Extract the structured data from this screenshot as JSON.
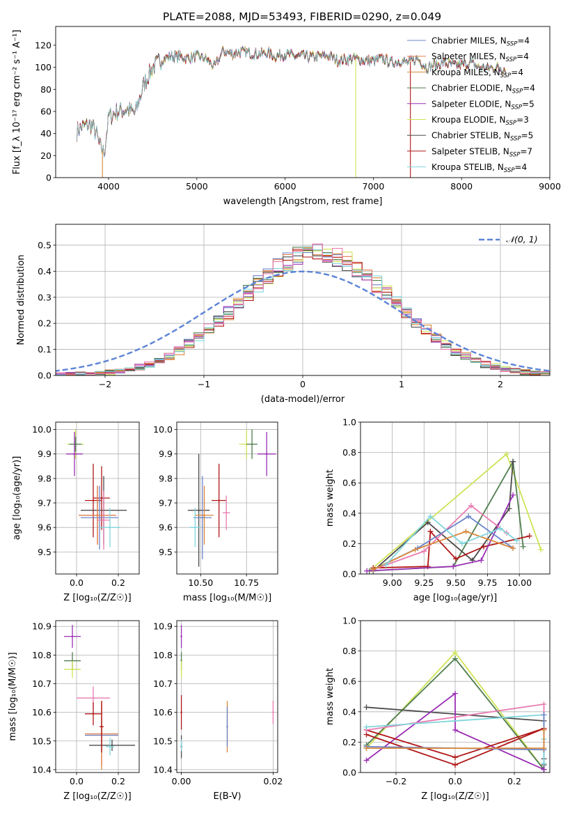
{
  "title": "PLATE=2088, MJD=53493, FIBERID=0290, z=0.049",
  "colors": {
    "chabrier_miles": "#6b84c9",
    "salpeter_miles": "#e07c4c",
    "kroupa_miles": "#d9883a",
    "chabrier_elodie": "#4f7d4f",
    "salpeter_elodie": "#9a2fb5",
    "kroupa_elodie": "#cfe356",
    "chabrier_stelib": "#4b4b4b",
    "salpeter_stelib": "#b01515",
    "kroupa_stelib": "#7fd6dd",
    "pink": "#e87ab0",
    "gaussian": "#5b83d6",
    "grid": "#b0b0b0"
  },
  "chart_data": [
    {
      "id": "spectrum",
      "type": "line",
      "title": "PLATE=2088, MJD=53493, FIBERID=0290, z=0.049",
      "xlabel": "wavelength [Angstrom, rest frame]",
      "ylabel": "Flux [f_λ 10⁻¹⁷ erg cm⁻² s⁻¹ A⁻¹]",
      "xlim": [
        3400,
        9000
      ],
      "ylim": [
        0,
        137
      ],
      "xticks": [
        4000,
        5000,
        6000,
        7000,
        8000,
        9000
      ],
      "yticks": [
        0,
        20,
        40,
        60,
        80,
        100,
        120
      ],
      "grid": false,
      "legend_position": "top-right",
      "legend": [
        {
          "name": "Chabrier MILES, N",
          "sub": "SSP",
          "suffix": "=4",
          "color": "chabrier_miles"
        },
        {
          "name": "Salpeter MILES, N",
          "sub": "SSP",
          "suffix": "=4",
          "color": "salpeter_miles"
        },
        {
          "name": "Kroupa MILES, N",
          "sub": "SSP",
          "suffix": "=4",
          "color": "kroupa_miles"
        },
        {
          "name": "Chabrier ELODIE, N",
          "sub": "SSP",
          "suffix": "=4",
          "color": "chabrier_elodie"
        },
        {
          "name": "Salpeter ELODIE, N",
          "sub": "SSP",
          "suffix": "=5",
          "color": "salpeter_elodie"
        },
        {
          "name": "Kroupa ELODIE, N",
          "sub": "SSP",
          "suffix": "=3",
          "color": "kroupa_elodie"
        },
        {
          "name": "Chabrier STELIB, N",
          "sub": "SSP",
          "suffix": "=5",
          "color": "chabrier_stelib"
        },
        {
          "name": "Salpeter STELIB, N",
          "sub": "SSP",
          "suffix": "=7",
          "color": "salpeter_stelib"
        },
        {
          "name": "Kroupa STELIB, N",
          "sub": "SSP",
          "suffix": "=4",
          "color": "kroupa_stelib"
        }
      ],
      "continuum": [
        [
          3640,
          42
        ],
        [
          3700,
          46
        ],
        [
          3800,
          48
        ],
        [
          3860,
          40
        ],
        [
          3900,
          28
        ],
        [
          3950,
          22
        ],
        [
          4000,
          55
        ],
        [
          4100,
          60
        ],
        [
          4200,
          62
        ],
        [
          4300,
          58
        ],
        [
          4400,
          85
        ],
        [
          4500,
          100
        ],
        [
          4600,
          107
        ],
        [
          4700,
          110
        ],
        [
          4800,
          110
        ],
        [
          4900,
          108
        ],
        [
          5000,
          110
        ],
        [
          5100,
          108
        ],
        [
          5200,
          100
        ],
        [
          5300,
          115
        ],
        [
          5400,
          112
        ],
        [
          5500,
          114
        ],
        [
          5600,
          113
        ],
        [
          5700,
          112
        ],
        [
          5800,
          113
        ],
        [
          5900,
          110
        ],
        [
          6000,
          112
        ],
        [
          6100,
          110
        ],
        [
          6200,
          110
        ],
        [
          6300,
          109
        ],
        [
          6400,
          110
        ],
        [
          6500,
          110
        ],
        [
          6600,
          106
        ],
        [
          6700,
          107
        ],
        [
          6800,
          108
        ],
        [
          6900,
          106
        ],
        [
          7000,
          106
        ],
        [
          7100,
          108
        ],
        [
          7200,
          104
        ],
        [
          7300,
          106
        ],
        [
          7400,
          104
        ],
        [
          7500,
          108
        ],
        [
          7600,
          100
        ],
        [
          7700,
          102
        ],
        [
          7800,
          104
        ],
        [
          7900,
          102
        ],
        [
          8000,
          102
        ],
        [
          8100,
          104
        ],
        [
          8200,
          100
        ],
        [
          8300,
          99
        ],
        [
          8400,
          100
        ],
        [
          8500,
          98
        ]
      ],
      "drops": [
        {
          "x": 3930,
          "color": "kroupa_miles"
        },
        {
          "x": 6800,
          "color": "kroupa_elodie"
        },
        {
          "x": 7420,
          "color": "salpeter_stelib"
        }
      ]
    },
    {
      "id": "residuals",
      "type": "histogram",
      "xlabel": "(data-model)/error",
      "ylabel": "Normed distribution",
      "xlim": [
        -2.5,
        2.5
      ],
      "ylim": [
        0,
        0.58
      ],
      "xticks": [
        -2,
        -1,
        0,
        1,
        2
      ],
      "yticks": [
        0.0,
        0.1,
        0.2,
        0.3,
        0.4,
        0.5
      ],
      "grid": true,
      "legend_position": "top-right",
      "gaussian_label": "𝒩(0, 1)",
      "bin_width": 0.1,
      "center": 0.15,
      "sigma": 0.78,
      "peak": 0.47,
      "series_colors": [
        "chabrier_miles",
        "salpeter_miles",
        "kroupa_miles",
        "chabrier_elodie",
        "salpeter_elodie",
        "kroupa_elodie",
        "chabrier_stelib",
        "salpeter_stelib",
        "kroupa_stelib",
        "pink"
      ]
    },
    {
      "id": "age_vs_Z",
      "type": "errorbar",
      "xlabel": "Z [log₁₀(Z/Z☉)]",
      "ylabel": "age  [log₁₀(age/yr)]",
      "xlim": [
        -0.1,
        0.3
      ],
      "ylim": [
        9.41,
        10.03
      ],
      "xticks": [
        0.0,
        0.2
      ],
      "yticks": [
        9.5,
        9.6,
        9.7,
        9.8,
        9.9,
        10.0
      ],
      "grid": true,
      "points": [
        {
          "x": -0.005,
          "y": 9.94,
          "xerr": 0.04,
          "yerr": 0.06,
          "color": "kroupa_elodie"
        },
        {
          "x": -0.005,
          "y": 9.94,
          "xerr": 0.03,
          "yerr": 0.03,
          "color": "chabrier_elodie"
        },
        {
          "x": -0.01,
          "y": 9.9,
          "xerr": 0.04,
          "yerr": 0.09,
          "color": "salpeter_elodie"
        },
        {
          "x": 0.08,
          "y": 9.71,
          "xerr": 0.04,
          "yerr": 0.15,
          "color": "salpeter_stelib"
        },
        {
          "x": 0.12,
          "y": 9.72,
          "xerr": 0.04,
          "yerr": 0.13,
          "color": "salpeter_stelib"
        },
        {
          "x": 0.13,
          "y": 9.67,
          "xerr": 0.11,
          "yerr": 0.14,
          "color": "chabrier_stelib"
        },
        {
          "x": 0.11,
          "y": 9.64,
          "xerr": 0.09,
          "yerr": 0.13,
          "color": "chabrier_miles"
        },
        {
          "x": 0.1,
          "y": 9.65,
          "xerr": 0.09,
          "yerr": 0.12,
          "color": "kroupa_miles"
        },
        {
          "x": 0.1,
          "y": 9.65,
          "xerr": 0.09,
          "yerr": 0.12,
          "color": "salpeter_miles"
        },
        {
          "x": 0.13,
          "y": 9.63,
          "xerr": 0.03,
          "yerr": 0.12,
          "color": "pink"
        },
        {
          "x": 0.16,
          "y": 9.6,
          "xerr": 0.05,
          "yerr": 0.08,
          "color": "kroupa_stelib"
        }
      ]
    },
    {
      "id": "age_vs_mass",
      "type": "errorbar",
      "xlabel": "mass [log₁₀(M/M☉)]",
      "ylabel": "",
      "xlim": [
        10.37,
        10.92
      ],
      "ylim": [
        9.41,
        10.03
      ],
      "xticks": [
        10.5,
        10.75
      ],
      "yticks": [
        9.5,
        9.6,
        9.7,
        9.8,
        9.9,
        10.0
      ],
      "grid": true,
      "points": [
        {
          "x": 10.75,
          "y": 9.94,
          "xerr": 0.04,
          "yerr": 0.06,
          "color": "kroupa_elodie"
        },
        {
          "x": 10.78,
          "y": 9.94,
          "xerr": 0.03,
          "yerr": 0.06,
          "color": "chabrier_elodie"
        },
        {
          "x": 10.86,
          "y": 9.9,
          "xerr": 0.05,
          "yerr": 0.09,
          "color": "salpeter_elodie"
        },
        {
          "x": 10.6,
          "y": 9.71,
          "xerr": 0.04,
          "yerr": 0.15,
          "color": "salpeter_stelib"
        },
        {
          "x": 10.49,
          "y": 9.67,
          "xerr": 0.06,
          "yerr": 0.23,
          "color": "chabrier_stelib"
        },
        {
          "x": 10.51,
          "y": 9.64,
          "xerr": 0.05,
          "yerr": 0.17,
          "color": "chabrier_miles"
        },
        {
          "x": 10.52,
          "y": 9.65,
          "xerr": 0.05,
          "yerr": 0.12,
          "color": "kroupa_miles"
        },
        {
          "x": 10.64,
          "y": 9.66,
          "xerr": 0.02,
          "yerr": 0.07,
          "color": "pink"
        },
        {
          "x": 10.47,
          "y": 9.6,
          "xerr": 0.03,
          "yerr": 0.08,
          "color": "kroupa_stelib"
        }
      ]
    },
    {
      "id": "weight_vs_age",
      "type": "line",
      "xlabel": "age  [log₁₀(age/yr)]",
      "ylabel": "mass weight",
      "xlim": [
        8.75,
        10.24
      ],
      "ylim": [
        0,
        1
      ],
      "xticks": [
        9.0,
        9.25,
        9.5,
        9.75,
        10.0
      ],
      "yticks": [
        0.0,
        0.2,
        0.4,
        0.6,
        0.8,
        1.0
      ],
      "grid": true,
      "series": [
        {
          "color": "kroupa_elodie",
          "x": [
            8.82,
            9.9,
            10.17
          ],
          "y": [
            0.02,
            0.79,
            0.16
          ]
        },
        {
          "color": "chabrier_elodie",
          "x": [
            8.82,
            9.48,
            9.95,
            10.03
          ],
          "y": [
            0.02,
            0.05,
            0.74,
            0.18
          ]
        },
        {
          "color": "chabrier_stelib",
          "x": [
            8.85,
            9.28,
            9.63,
            9.92,
            9.95
          ],
          "y": [
            0.02,
            0.34,
            0.09,
            0.43,
            0.74
          ]
        },
        {
          "color": "salpeter_stelib",
          "x": [
            8.85,
            9.28,
            9.3,
            9.5,
            9.72,
            10.08
          ],
          "y": [
            0.04,
            0.05,
            0.28,
            0.1,
            0.18,
            0.25
          ]
        },
        {
          "color": "salpeter_elodie",
          "x": [
            8.8,
            9.48,
            9.7,
            9.95
          ],
          "y": [
            0.02,
            0.05,
            0.09,
            0.52
          ]
        },
        {
          "color": "pink",
          "x": [
            8.85,
            9.25,
            9.62,
            9.9
          ],
          "y": [
            0.03,
            0.15,
            0.45,
            0.27
          ]
        },
        {
          "color": "chabrier_miles",
          "x": [
            8.85,
            9.2,
            9.6,
            9.95
          ],
          "y": [
            0.03,
            0.17,
            0.38,
            0.17
          ]
        },
        {
          "color": "kroupa_miles",
          "x": [
            8.85,
            9.18,
            9.58,
            9.95
          ],
          "y": [
            0.03,
            0.16,
            0.28,
            0.17
          ]
        },
        {
          "color": "kroupa_stelib",
          "x": [
            8.95,
            9.3,
            9.55,
            9.85,
            9.98
          ],
          "y": [
            0.06,
            0.38,
            0.2,
            0.3,
            0.22
          ]
        }
      ]
    },
    {
      "id": "mass_vs_Z",
      "type": "errorbar",
      "xlabel": "Z [log₁₀(Z/Z☉)]",
      "ylabel": "mass [log₁₀(M/M☉)]",
      "xlim": [
        -0.1,
        0.3
      ],
      "ylim": [
        10.39,
        10.92
      ],
      "xticks": [
        0.0,
        0.2
      ],
      "yticks": [
        10.4,
        10.5,
        10.6,
        10.7,
        10.8,
        10.9
      ],
      "grid": true,
      "points": [
        {
          "x": -0.02,
          "y": 10.865,
          "xerr": 0.04,
          "yerr": 0.04,
          "color": "salpeter_elodie"
        },
        {
          "x": -0.02,
          "y": 10.78,
          "xerr": 0.04,
          "yerr": 0.03,
          "color": "chabrier_elodie"
        },
        {
          "x": -0.02,
          "y": 10.75,
          "xerr": 0.04,
          "yerr": 0.03,
          "color": "kroupa_elodie"
        },
        {
          "x": 0.08,
          "y": 10.65,
          "xerr": 0.08,
          "yerr": 0.04,
          "color": "pink"
        },
        {
          "x": 0.08,
          "y": 10.595,
          "xerr": 0.04,
          "yerr": 0.04,
          "color": "salpeter_stelib"
        },
        {
          "x": 0.12,
          "y": 10.52,
          "xerr": 0.08,
          "yerr": 0.12,
          "color": "kroupa_miles"
        },
        {
          "x": 0.12,
          "y": 10.52,
          "xerr": 0.08,
          "yerr": 0.06,
          "color": "chabrier_miles"
        },
        {
          "x": 0.12,
          "y": 10.525,
          "xerr": 0.08,
          "yerr": 0.11,
          "color": "salpeter_miles"
        },
        {
          "x": 0.17,
          "y": 10.485,
          "xerr": 0.11,
          "yerr": 0.02,
          "color": "chabrier_stelib"
        },
        {
          "x": 0.12,
          "y": 10.55,
          "xerr": 0.01,
          "yerr": 0.09,
          "color": "salpeter_stelib"
        },
        {
          "x": 0.16,
          "y": 10.48,
          "xerr": 0.02,
          "yerr": 0.03,
          "color": "kroupa_stelib"
        }
      ]
    },
    {
      "id": "mass_vs_ebv",
      "type": "errorbar",
      "xlabel": "E(B-V)",
      "ylabel": "",
      "xlim": [
        -0.001,
        0.021
      ],
      "ylim": [
        10.39,
        10.92
      ],
      "xticks": [
        0.0,
        0.02
      ],
      "xtick_labels": [
        "0.00",
        "0.02"
      ],
      "yticks": [
        10.4,
        10.5,
        10.6,
        10.7,
        10.8,
        10.9
      ],
      "grid": true,
      "points": [
        {
          "x": 0.0,
          "y": 10.865,
          "xerr": 0,
          "yerr": 0.04,
          "color": "salpeter_elodie"
        },
        {
          "x": 0.0,
          "y": 10.78,
          "xerr": 0,
          "yerr": 0.03,
          "color": "chabrier_elodie"
        },
        {
          "x": 0.0,
          "y": 10.75,
          "xerr": 0,
          "yerr": 0.03,
          "color": "kroupa_elodie"
        },
        {
          "x": 0.0,
          "y": 10.6,
          "xerr": 0,
          "yerr": 0.06,
          "color": "salpeter_stelib"
        },
        {
          "x": 0.0,
          "y": 10.48,
          "xerr": 0,
          "yerr": 0.04,
          "color": "chabrier_stelib"
        },
        {
          "x": 0.0,
          "y": 10.485,
          "xerr": 0,
          "yerr": 0.02,
          "color": "kroupa_stelib"
        },
        {
          "x": 0.01,
          "y": 10.55,
          "xerr": 0,
          "yerr": 0.09,
          "color": "kroupa_miles"
        },
        {
          "x": 0.01,
          "y": 10.55,
          "xerr": 0,
          "yerr": 0.07,
          "color": "chabrier_miles"
        },
        {
          "x": 0.02,
          "y": 10.6,
          "xerr": 0,
          "yerr": 0.04,
          "color": "pink"
        }
      ]
    },
    {
      "id": "weight_vs_Z",
      "type": "line",
      "xlabel": "Z [log₁₀(Z/Z☉)]",
      "ylabel": "mass weight",
      "xlim": [
        -0.32,
        0.32
      ],
      "ylim": [
        0,
        1
      ],
      "xticks": [
        -0.2,
        0.0,
        0.2
      ],
      "yticks": [
        0.0,
        0.2,
        0.4,
        0.6,
        0.8,
        1.0
      ],
      "grid": true,
      "series": [
        {
          "color": "kroupa_elodie",
          "x": [
            -0.3,
            0.0,
            0.3
          ],
          "y": [
            0.16,
            0.79,
            0.02
          ]
        },
        {
          "color": "chabrier_elodie",
          "x": [
            -0.3,
            0.0,
            0.3
          ],
          "y": [
            0.18,
            0.75,
            0.02
          ]
        },
        {
          "color": "chabrier_stelib",
          "x": [
            -0.3,
            0.3,
            0.3,
            0.3,
            0.3
          ],
          "y": [
            0.43,
            0.34,
            0.09,
            0.05,
            0.02
          ]
        },
        {
          "color": "salpeter_elodie",
          "x": [
            -0.3,
            0.0,
            0.0,
            0.3
          ],
          "y": [
            0.08,
            0.52,
            0.28,
            0.02
          ]
        },
        {
          "color": "salpeter_stelib",
          "x": [
            -0.3,
            0.0,
            0.3,
            0.0,
            -0.3
          ],
          "y": [
            0.25,
            0.05,
            0.29,
            0.1,
            0.28
          ]
        },
        {
          "color": "pink",
          "x": [
            -0.3,
            0.3,
            0.3
          ],
          "y": [
            0.28,
            0.45,
            0.15
          ]
        },
        {
          "color": "kroupa_stelib",
          "x": [
            -0.3,
            0.3,
            0.3,
            0.3
          ],
          "y": [
            0.3,
            0.38,
            0.22,
            0.06
          ]
        },
        {
          "color": "chabrier_miles",
          "x": [
            -0.3,
            0.3,
            0.3
          ],
          "y": [
            0.17,
            0.15,
            0.38
          ]
        },
        {
          "color": "kroupa_miles",
          "x": [
            -0.3,
            0.3,
            0.3
          ],
          "y": [
            0.16,
            0.16,
            0.28
          ]
        }
      ]
    }
  ]
}
